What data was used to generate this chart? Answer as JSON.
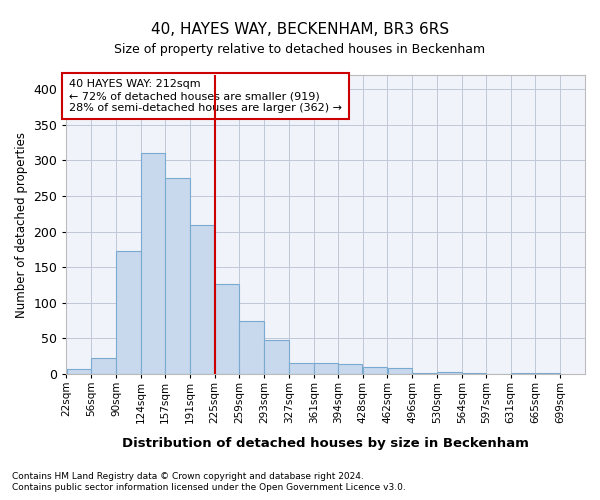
{
  "title": "40, HAYES WAY, BECKENHAM, BR3 6RS",
  "subtitle": "Size of property relative to detached houses in Beckenham",
  "xlabel": "Distribution of detached houses by size in Beckenham",
  "ylabel": "Number of detached properties",
  "footnote1": "Contains HM Land Registry data © Crown copyright and database right 2024.",
  "footnote2": "Contains public sector information licensed under the Open Government Licence v3.0.",
  "annotation_line1": "40 HAYES WAY: 212sqm",
  "annotation_line2": "← 72% of detached houses are smaller (919)",
  "annotation_line3": "28% of semi-detached houses are larger (362) →",
  "bar_left_edges": [
    22,
    56,
    90,
    124,
    157,
    191,
    225,
    259,
    293,
    327,
    361,
    394,
    428,
    462,
    496,
    530,
    564,
    597,
    631,
    665
  ],
  "bar_widths": [
    34,
    34,
    34,
    33,
    34,
    34,
    34,
    34,
    34,
    34,
    33,
    34,
    34,
    34,
    34,
    34,
    33,
    34,
    34,
    34
  ],
  "bar_heights": [
    7,
    22,
    173,
    310,
    276,
    210,
    126,
    75,
    48,
    16,
    16,
    14,
    10,
    8,
    2,
    3,
    1,
    0,
    1,
    2
  ],
  "bar_color": "#c8d8ed",
  "bar_edge_color": "#7aaacf",
  "vline_x": 225,
  "vline_color": "#cc0000",
  "bg_color": "#ffffff",
  "plot_bg_color": "#f0f4fa",
  "grid_color": "#c0c8d8",
  "annotation_box_color": "#cc0000",
  "ylim": [
    0,
    420
  ],
  "yticks": [
    0,
    50,
    100,
    150,
    200,
    250,
    300,
    350,
    400
  ],
  "tick_labels": [
    "22sqm",
    "56sqm",
    "90sqm",
    "124sqm",
    "157sqm",
    "191sqm",
    "225sqm",
    "259sqm",
    "293sqm",
    "327sqm",
    "361sqm",
    "394sqm",
    "428sqm",
    "462sqm",
    "496sqm",
    "530sqm",
    "564sqm",
    "597sqm",
    "631sqm",
    "665sqm",
    "699sqm"
  ]
}
